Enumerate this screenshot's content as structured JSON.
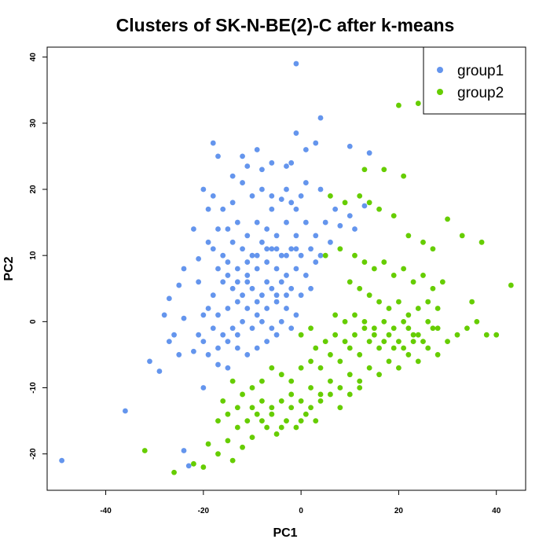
{
  "chart_data": {
    "type": "scatter",
    "title": "Clusters of SK-N-BE(2)-C after k-means",
    "xlabel": "PC1",
    "ylabel": "PC2",
    "xlim": [
      -52,
      46
    ],
    "ylim": [
      -25.5,
      41.5
    ],
    "xticks": [
      -40,
      -20,
      0,
      20,
      40
    ],
    "yticks": [
      -20,
      -10,
      0,
      10,
      20,
      30,
      40
    ],
    "grid": false,
    "legend_position": "top-right",
    "series": [
      {
        "name": "group1",
        "color": "#6495ED",
        "points": [
          [
            -49,
            -21
          ],
          [
            -36,
            -13.5
          ],
          [
            -24,
            -19.5
          ],
          [
            -23,
            -21.8
          ],
          [
            -20,
            -10
          ],
          [
            -31,
            -6
          ],
          [
            -29,
            -7.5
          ],
          [
            -27,
            -3
          ],
          [
            -25,
            -5
          ],
          [
            -22,
            -4.5
          ],
          [
            -26,
            -2
          ],
          [
            -24,
            0.5
          ],
          [
            -28,
            1
          ],
          [
            -21,
            -2
          ],
          [
            -19,
            -5
          ],
          [
            -17,
            -6.5
          ],
          [
            -15,
            -7
          ],
          [
            -13,
            -4
          ],
          [
            -25,
            5.5
          ],
          [
            -27,
            3.5
          ],
          [
            -24,
            8
          ],
          [
            -21,
            9.5
          ],
          [
            -22,
            14
          ],
          [
            -20,
            20
          ],
          [
            -19,
            17
          ],
          [
            -18,
            27
          ],
          [
            -17,
            25
          ],
          [
            -14,
            22
          ],
          [
            -12,
            25
          ],
          [
            -11,
            23.5
          ],
          [
            -9,
            26
          ],
          [
            -6,
            24
          ],
          [
            -3,
            23.5
          ],
          [
            -2,
            24
          ],
          [
            -1,
            28.5
          ],
          [
            -1,
            39
          ],
          [
            4,
            30.8
          ],
          [
            1,
            26
          ],
          [
            3,
            27
          ],
          [
            10,
            26.5
          ],
          [
            14,
            25.5
          ],
          [
            13,
            17.5
          ],
          [
            11,
            14
          ],
          [
            10,
            16
          ],
          [
            8,
            14.5
          ],
          [
            6,
            12
          ],
          [
            5,
            15
          ],
          [
            7,
            17
          ],
          [
            4,
            20
          ],
          [
            1,
            21
          ],
          [
            0,
            19
          ],
          [
            -2,
            18
          ],
          [
            -4,
            18.5
          ],
          [
            -6,
            19
          ],
          [
            -8,
            20
          ],
          [
            -10,
            19
          ],
          [
            -12,
            21
          ],
          [
            -14,
            18
          ],
          [
            -16,
            17
          ],
          [
            -18,
            19
          ],
          [
            -13,
            15
          ],
          [
            -15,
            14
          ],
          [
            -11,
            13
          ],
          [
            -9,
            15
          ],
          [
            -7,
            14
          ],
          [
            -5,
            13
          ],
          [
            -3,
            15
          ],
          [
            -1,
            13
          ],
          [
            1,
            15
          ],
          [
            3,
            13
          ],
          [
            2,
            11
          ],
          [
            0,
            10
          ],
          [
            -2,
            11
          ],
          [
            -4,
            10
          ],
          [
            -6,
            11
          ],
          [
            -8,
            12
          ],
          [
            -10,
            10
          ],
          [
            -12,
            11
          ],
          [
            -14,
            12
          ],
          [
            -16,
            10
          ],
          [
            -18,
            11
          ],
          [
            -17,
            8
          ],
          [
            -15,
            7
          ],
          [
            -13,
            8
          ],
          [
            -11,
            7
          ],
          [
            -9,
            8
          ],
          [
            -7,
            9
          ],
          [
            -5,
            8
          ],
          [
            -3,
            7
          ],
          [
            -1,
            8
          ],
          [
            1,
            7
          ],
          [
            3,
            9
          ],
          [
            4,
            10
          ],
          [
            2,
            5
          ],
          [
            0,
            4
          ],
          [
            -2,
            5
          ],
          [
            -4,
            6
          ],
          [
            -6,
            5
          ],
          [
            -8,
            4
          ],
          [
            -10,
            5
          ],
          [
            -12,
            4
          ],
          [
            -14,
            5
          ],
          [
            -16,
            6
          ],
          [
            -18,
            4
          ],
          [
            -19,
            2
          ],
          [
            -17,
            1
          ],
          [
            -15,
            2
          ],
          [
            -13,
            3
          ],
          [
            -11,
            2
          ],
          [
            -9,
            1
          ],
          [
            -7,
            2
          ],
          [
            -5,
            3
          ],
          [
            -3,
            2
          ],
          [
            -1,
            1
          ],
          [
            -2,
            -1
          ],
          [
            -4,
            0
          ],
          [
            -6,
            -1
          ],
          [
            -8,
            0
          ],
          [
            -10,
            -1
          ],
          [
            -12,
            0
          ],
          [
            -14,
            -1
          ],
          [
            -16,
            -2
          ],
          [
            -18,
            -1
          ],
          [
            -20,
            -3
          ],
          [
            -17,
            -4
          ],
          [
            -15,
            -3
          ],
          [
            -13,
            -2
          ],
          [
            -11,
            -5
          ],
          [
            -9,
            -4
          ],
          [
            -7,
            -3
          ],
          [
            -5,
            -2
          ],
          [
            -20,
            1
          ],
          [
            -21,
            6
          ],
          [
            -19,
            12
          ],
          [
            -17,
            14
          ],
          [
            -6,
            17
          ],
          [
            -8,
            23
          ],
          [
            -3,
            20
          ],
          [
            -1,
            17
          ],
          [
            -11,
            6
          ],
          [
            -9,
            3
          ],
          [
            -7,
            6
          ],
          [
            -5,
            4
          ],
          [
            -3,
            4
          ],
          [
            -13,
            6
          ],
          [
            -15,
            9
          ],
          [
            -11,
            9
          ],
          [
            -9,
            10
          ],
          [
            -7,
            11
          ],
          [
            -5,
            11
          ],
          [
            -3,
            10
          ],
          [
            -1,
            11
          ]
        ]
      },
      {
        "name": "group2",
        "color": "#66CD00",
        "points": [
          [
            -32,
            -19.5
          ],
          [
            -26,
            -22.8
          ],
          [
            -22,
            -21.5
          ],
          [
            -20,
            -22
          ],
          [
            -19,
            -18.5
          ],
          [
            -17,
            -20
          ],
          [
            -15,
            -18
          ],
          [
            -14,
            -21
          ],
          [
            -12,
            -19
          ],
          [
            -10,
            -17.5
          ],
          [
            -13,
            -16
          ],
          [
            -11,
            -15
          ],
          [
            -9,
            -14
          ],
          [
            -7,
            -16
          ],
          [
            -5,
            -17
          ],
          [
            -3,
            -15
          ],
          [
            -1,
            -16
          ],
          [
            1,
            -14
          ],
          [
            3,
            -15
          ],
          [
            -8,
            -12
          ],
          [
            -6,
            -13
          ],
          [
            -4,
            -12
          ],
          [
            -2,
            -11
          ],
          [
            0,
            -12
          ],
          [
            2,
            -10
          ],
          [
            4,
            -11
          ],
          [
            6,
            -9
          ],
          [
            8,
            -10
          ],
          [
            10,
            -8
          ],
          [
            12,
            -9
          ],
          [
            14,
            -7
          ],
          [
            16,
            -8
          ],
          [
            18,
            -6
          ],
          [
            20,
            -7
          ],
          [
            22,
            -5
          ],
          [
            24,
            -6
          ],
          [
            26,
            -4
          ],
          [
            28,
            -5
          ],
          [
            30,
            -3
          ],
          [
            32,
            -2
          ],
          [
            34,
            -1
          ],
          [
            36,
            0
          ],
          [
            38,
            -2
          ],
          [
            40,
            -2
          ],
          [
            37,
            12
          ],
          [
            43,
            5.5
          ],
          [
            30,
            15.5
          ],
          [
            33,
            13
          ],
          [
            35,
            3
          ],
          [
            -14,
            -9
          ],
          [
            -12,
            -11
          ],
          [
            -10,
            -10
          ],
          [
            -16,
            -12
          ],
          [
            -8,
            -9
          ],
          [
            -6,
            -7
          ],
          [
            -4,
            -8
          ],
          [
            -2,
            -9
          ],
          [
            0,
            -7
          ],
          [
            2,
            -6
          ],
          [
            4,
            -7
          ],
          [
            6,
            -5
          ],
          [
            8,
            -6
          ],
          [
            10,
            -4
          ],
          [
            12,
            -5
          ],
          [
            14,
            -3
          ],
          [
            16,
            -4
          ],
          [
            18,
            -2
          ],
          [
            20,
            -3
          ],
          [
            22,
            -1
          ],
          [
            24,
            -2
          ],
          [
            26,
            0
          ],
          [
            28,
            -1
          ],
          [
            24,
            33
          ],
          [
            20,
            32.7
          ],
          [
            21,
            22
          ],
          [
            17,
            23
          ],
          [
            13,
            23
          ],
          [
            6,
            19
          ],
          [
            9,
            18
          ],
          [
            12,
            19
          ],
          [
            14,
            18
          ],
          [
            16,
            17
          ],
          [
            19,
            16
          ],
          [
            22,
            13
          ],
          [
            25,
            12
          ],
          [
            27,
            11
          ],
          [
            5,
            10
          ],
          [
            8,
            11
          ],
          [
            11,
            10
          ],
          [
            13,
            9
          ],
          [
            15,
            8
          ],
          [
            17,
            9
          ],
          [
            19,
            7
          ],
          [
            21,
            8
          ],
          [
            23,
            6
          ],
          [
            25,
            7
          ],
          [
            27,
            5
          ],
          [
            29,
            6
          ],
          [
            10,
            6
          ],
          [
            12,
            5
          ],
          [
            14,
            4
          ],
          [
            16,
            3
          ],
          [
            18,
            2
          ],
          [
            20,
            3
          ],
          [
            22,
            1
          ],
          [
            24,
            2
          ],
          [
            26,
            3
          ],
          [
            28,
            2
          ],
          [
            7,
            1
          ],
          [
            9,
            0
          ],
          [
            11,
            1
          ],
          [
            13,
            0
          ],
          [
            15,
            -1
          ],
          [
            17,
            0
          ],
          [
            19,
            -1
          ],
          [
            21,
            0
          ],
          [
            23,
            -2
          ],
          [
            25,
            -3
          ],
          [
            27,
            -1
          ],
          [
            3,
            -4
          ],
          [
            5,
            -3
          ],
          [
            7,
            -2
          ],
          [
            9,
            -3
          ],
          [
            11,
            -2
          ],
          [
            13,
            -1
          ],
          [
            15,
            -2
          ],
          [
            17,
            -3
          ],
          [
            19,
            -4
          ],
          [
            21,
            -4
          ],
          [
            23,
            -3
          ],
          [
            0,
            -2
          ],
          [
            2,
            -1
          ],
          [
            -10,
            -13
          ],
          [
            -8,
            -15
          ],
          [
            -6,
            -14
          ],
          [
            -4,
            -16
          ],
          [
            -2,
            -13
          ],
          [
            0,
            -15
          ],
          [
            2,
            -13
          ],
          [
            4,
            -12
          ],
          [
            6,
            -11
          ],
          [
            8,
            -13
          ],
          [
            10,
            -11
          ],
          [
            12,
            -10
          ],
          [
            -13,
            -13
          ],
          [
            -17,
            -15
          ],
          [
            -15,
            -14
          ]
        ]
      }
    ]
  }
}
